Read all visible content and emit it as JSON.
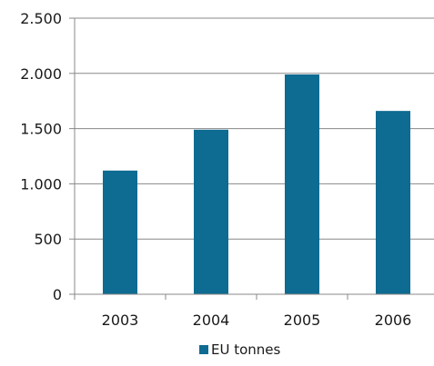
{
  "chart_data": {
    "type": "bar",
    "categories": [
      "2003",
      "2004",
      "2005",
      "2006"
    ],
    "series": [
      {
        "name": "EU tonnes",
        "values": [
          1120,
          1490,
          1990,
          1660
        ],
        "color": "#0e6b91"
      }
    ],
    "title": "",
    "xlabel": "",
    "ylabel": "",
    "ylim": [
      0,
      2500
    ],
    "yticks": [
      0,
      500,
      1000,
      1500,
      2000,
      2500
    ],
    "ytick_labels": [
      "0",
      "500",
      "1.000",
      "1.500",
      "2.000",
      "2.500"
    ],
    "grid": true,
    "legend_position": "bottom"
  },
  "colors": {
    "bar": "#0e6b91",
    "grid": "#888888",
    "axis": "#888888",
    "text": "#1a1a1a"
  }
}
